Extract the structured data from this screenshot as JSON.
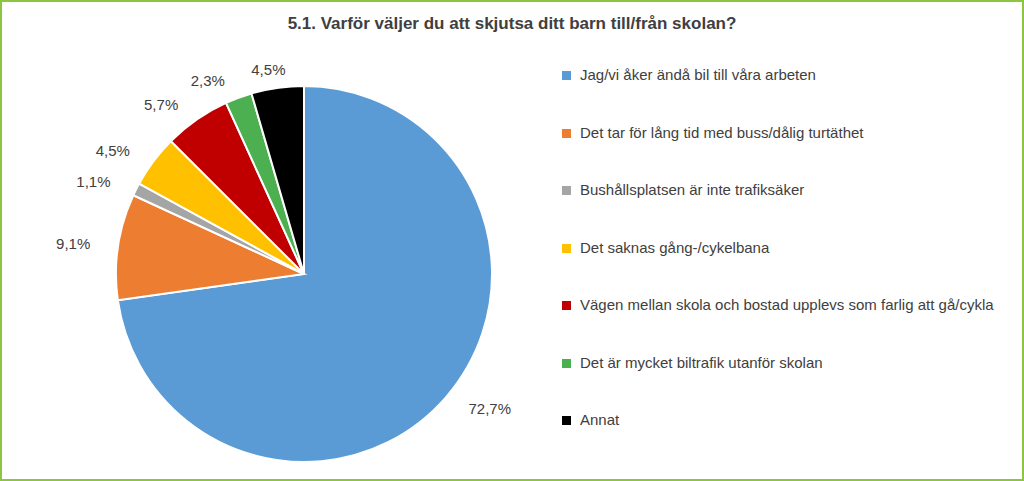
{
  "chart_data": {
    "type": "pie",
    "title": "5.1. Varför väljer du att skjutsa ditt barn till/från skolan?",
    "categories": [
      "Jag/vi åker ändå bil till våra arbeten",
      "Det tar för lång tid med buss/dålig turtäthet",
      "Bushållsplatsen är inte trafiksäker",
      "Det saknas gång-/cykelbana",
      "Vägen mellan skola och bostad upplevs som farlig att gå/cykla",
      "Det är mycket biltrafik utanför skolan",
      "Annat"
    ],
    "values": [
      72.7,
      9.1,
      1.1,
      4.5,
      5.7,
      2.3,
      4.5
    ],
    "value_labels": [
      "72,7%",
      "9,1%",
      "1,1%",
      "4,5%",
      "5,7%",
      "2,3%",
      "4,5%"
    ],
    "colors": [
      "#5b9bd5",
      "#ed7d31",
      "#a5a5a5",
      "#ffc000",
      "#c00000",
      "#4caf50",
      "#000000"
    ],
    "data_labels": true,
    "legend": "right"
  }
}
